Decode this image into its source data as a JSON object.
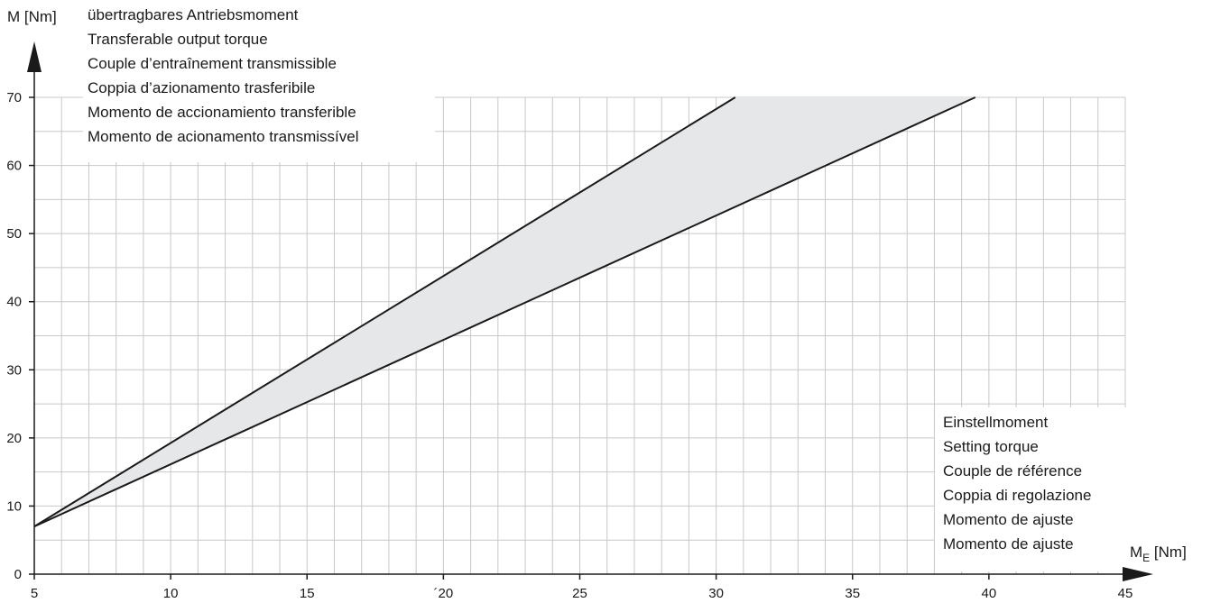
{
  "chart_data": {
    "type": "area",
    "ylabel": "M [Nm]",
    "xlabel_main": "M",
    "xlabel_sub": "E",
    "xlabel_unit": " [Nm]",
    "x_ticks": [
      "5",
      "10",
      "15",
      "´20",
      "25",
      "30",
      "35",
      "40",
      "45"
    ],
    "y_ticks": [
      "0",
      "10",
      "20",
      "30",
      "40",
      "50",
      "60",
      "70"
    ],
    "xlim": [
      5,
      45
    ],
    "ylim": [
      0,
      70
    ],
    "grid": true,
    "series": [
      {
        "x": [
          5,
          30.7
        ],
        "y": [
          7,
          70
        ]
      },
      {
        "x": [
          5,
          39.5
        ],
        "y": [
          7,
          70
        ]
      }
    ],
    "band_fill": "#e6e7e9",
    "line_color": "#1a1a1a",
    "grid_color": "#c8c8c8",
    "y_legend": [
      "übertragbares Antriebsmoment",
      "Transferable output torque",
      "Couple d’entraînement transmissible",
      "Coppia d’azionamento trasferibile",
      "Momento de accionamiento transferible",
      "Momento de acionamento transmissível"
    ],
    "x_legend": [
      "Einstellmoment",
      "Setting torque",
      "Couple de référence",
      "Coppia di regolazione",
      "Momento de ajuste",
      "Momento de ajuste"
    ]
  }
}
